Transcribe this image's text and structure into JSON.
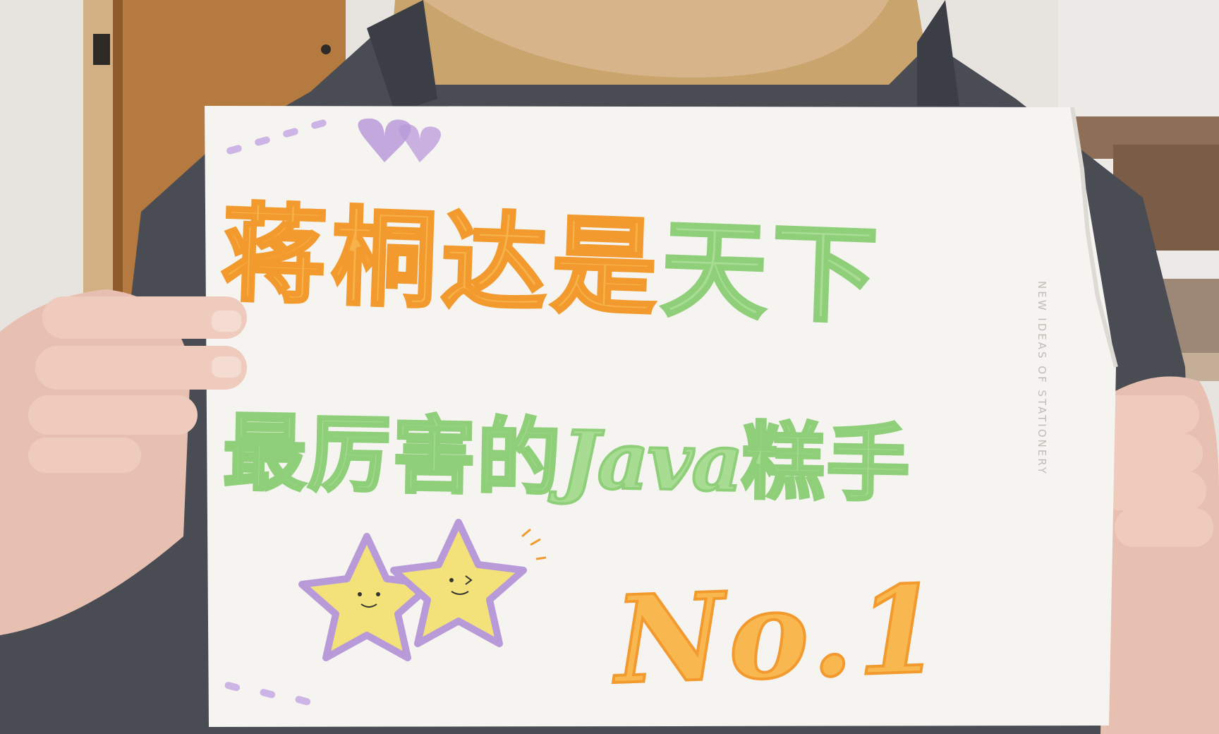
{
  "sign": {
    "line1": {
      "orange": "蒋桐达是",
      "green": "天下"
    },
    "line2": {
      "a": "最厉害的",
      "b": "Java",
      "c": "糕手"
    },
    "line3": "No.1",
    "brand": "NEW IDEAS OF STATIONERY"
  },
  "colors": {
    "orange": "#f7b24a",
    "green": "#a7dc92",
    "purple": "#b99ad9",
    "star_yellow": "#f3e27a"
  }
}
